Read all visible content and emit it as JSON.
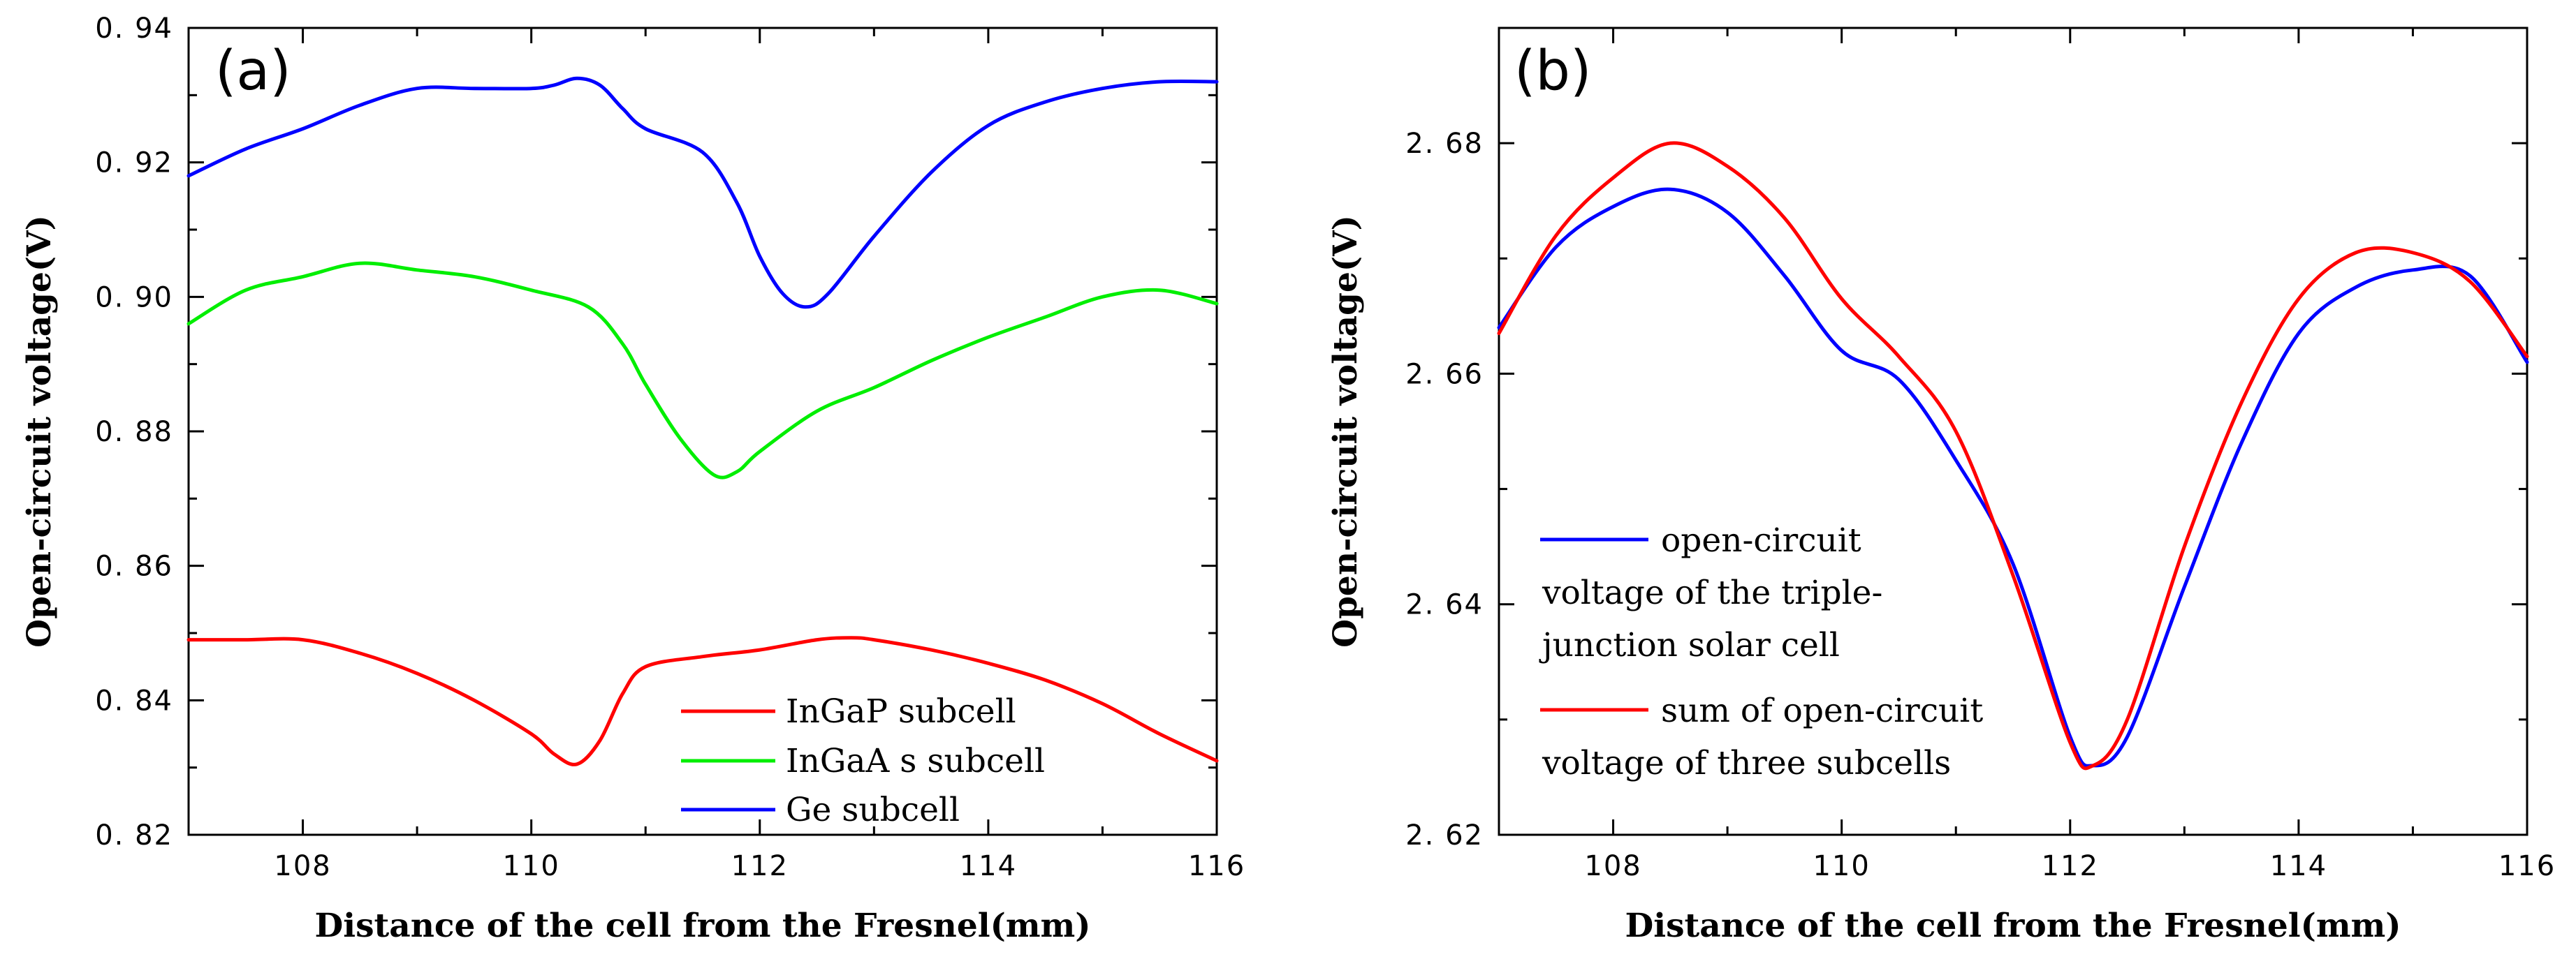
{
  "chart_data": [
    {
      "id": "a",
      "type": "line",
      "panel_label": "(a)",
      "xlabel": "Distance of the cell from the Fresnel(mm)",
      "ylabel": "Open-circuit voltage(V)",
      "xlim": [
        107,
        116
      ],
      "ylim": [
        0.82,
        0.94
      ],
      "x_ticks": [
        108,
        110,
        112,
        114,
        116
      ],
      "x_tick_labels": [
        "108",
        "110",
        "112",
        "114",
        "116"
      ],
      "y_ticks": [
        0.82,
        0.84,
        0.86,
        0.88,
        0.9,
        0.92,
        0.94
      ],
      "y_tick_labels": [
        "0. 82",
        "0. 84",
        "0. 86",
        "0. 88",
        "0. 90",
        "0. 92",
        "0. 94"
      ],
      "legend_position": "bottom-right",
      "series": [
        {
          "name": "InGaP subcell",
          "color": "#ff0000",
          "x": [
            107,
            107.5,
            108,
            108.5,
            109,
            109.5,
            110,
            110.2,
            110.4,
            110.6,
            110.8,
            111,
            111.5,
            112,
            112.5,
            112.8,
            113,
            113.5,
            114,
            114.5,
            115,
            115.5,
            116
          ],
          "y": [
            0.849,
            0.849,
            0.849,
            0.847,
            0.844,
            0.84,
            0.835,
            0.832,
            0.8305,
            0.834,
            0.841,
            0.845,
            0.8465,
            0.8475,
            0.849,
            0.8493,
            0.849,
            0.8475,
            0.8455,
            0.843,
            0.8395,
            0.835,
            0.831
          ]
        },
        {
          "name": "InGaA s subcell",
          "color": "#00ee00",
          "x": [
            107,
            107.5,
            108,
            108.5,
            109,
            109.5,
            110,
            110.5,
            110.8,
            111,
            111.3,
            111.6,
            111.8,
            112,
            112.5,
            113,
            113.5,
            114,
            114.5,
            115,
            115.5,
            116
          ],
          "y": [
            0.896,
            0.901,
            0.903,
            0.905,
            0.904,
            0.903,
            0.901,
            0.8985,
            0.893,
            0.887,
            0.879,
            0.8735,
            0.874,
            0.877,
            0.883,
            0.8865,
            0.8905,
            0.894,
            0.897,
            0.9,
            0.901,
            0.899
          ]
        },
        {
          "name": "Ge subcell",
          "color": "#0000ff",
          "x": [
            107,
            107.5,
            108,
            108.5,
            109,
            109.5,
            110,
            110.2,
            110.4,
            110.6,
            110.8,
            111,
            111.5,
            111.8,
            112,
            112.2,
            112.4,
            112.6,
            113,
            113.5,
            114,
            114.5,
            115,
            115.5,
            116
          ],
          "y": [
            0.918,
            0.922,
            0.925,
            0.9285,
            0.931,
            0.931,
            0.931,
            0.9315,
            0.9325,
            0.9315,
            0.928,
            0.925,
            0.9215,
            0.914,
            0.906,
            0.9005,
            0.8985,
            0.9005,
            0.909,
            0.9185,
            0.9255,
            0.929,
            0.931,
            0.932,
            0.932
          ]
        }
      ]
    },
    {
      "id": "b",
      "type": "line",
      "panel_label": "(b)",
      "xlabel": "Distance of the cell from the Fresnel(mm)",
      "ylabel": "Open-circuit voltage(V)",
      "xlim": [
        107,
        116
      ],
      "ylim": [
        2.62,
        2.69
      ],
      "x_ticks": [
        108,
        110,
        112,
        114,
        116
      ],
      "x_tick_labels": [
        "108",
        "110",
        "112",
        "114",
        "116"
      ],
      "y_ticks": [
        2.62,
        2.64,
        2.66,
        2.68
      ],
      "y_tick_labels": [
        "2. 62",
        "2. 64",
        "2. 66",
        "2. 68"
      ],
      "legend_position": "bottom-left",
      "series": [
        {
          "name_lines": [
            "open-circuit",
            "voltage of the triple-",
            "junction solar cell"
          ],
          "color": "#0000ff",
          "x": [
            107,
            107.5,
            108,
            108.5,
            109,
            109.5,
            110,
            110.5,
            111,
            111.5,
            112,
            112.2,
            112.5,
            113,
            113.5,
            114,
            114.5,
            115,
            115.5,
            116
          ],
          "y": [
            2.664,
            2.671,
            2.6745,
            2.676,
            2.674,
            2.6685,
            2.662,
            2.6595,
            2.6525,
            2.6435,
            2.6285,
            2.626,
            2.6285,
            2.6415,
            2.654,
            2.6635,
            2.6675,
            2.669,
            2.6685,
            2.661
          ]
        },
        {
          "name_lines": [
            "sum of open-circuit",
            "voltage of three subcells"
          ],
          "color": "#ff0000",
          "x": [
            107,
            107.5,
            108,
            108.5,
            109,
            109.5,
            110,
            110.5,
            111,
            111.5,
            112,
            112.2,
            112.5,
            113,
            113.5,
            114,
            114.5,
            115,
            115.5,
            116
          ],
          "y": [
            2.6635,
            2.672,
            2.677,
            2.68,
            2.678,
            2.6735,
            2.6665,
            2.6615,
            2.655,
            2.6425,
            2.628,
            2.626,
            2.63,
            2.645,
            2.6575,
            2.6665,
            2.6705,
            2.6705,
            2.668,
            2.6615
          ]
        }
      ]
    }
  ]
}
